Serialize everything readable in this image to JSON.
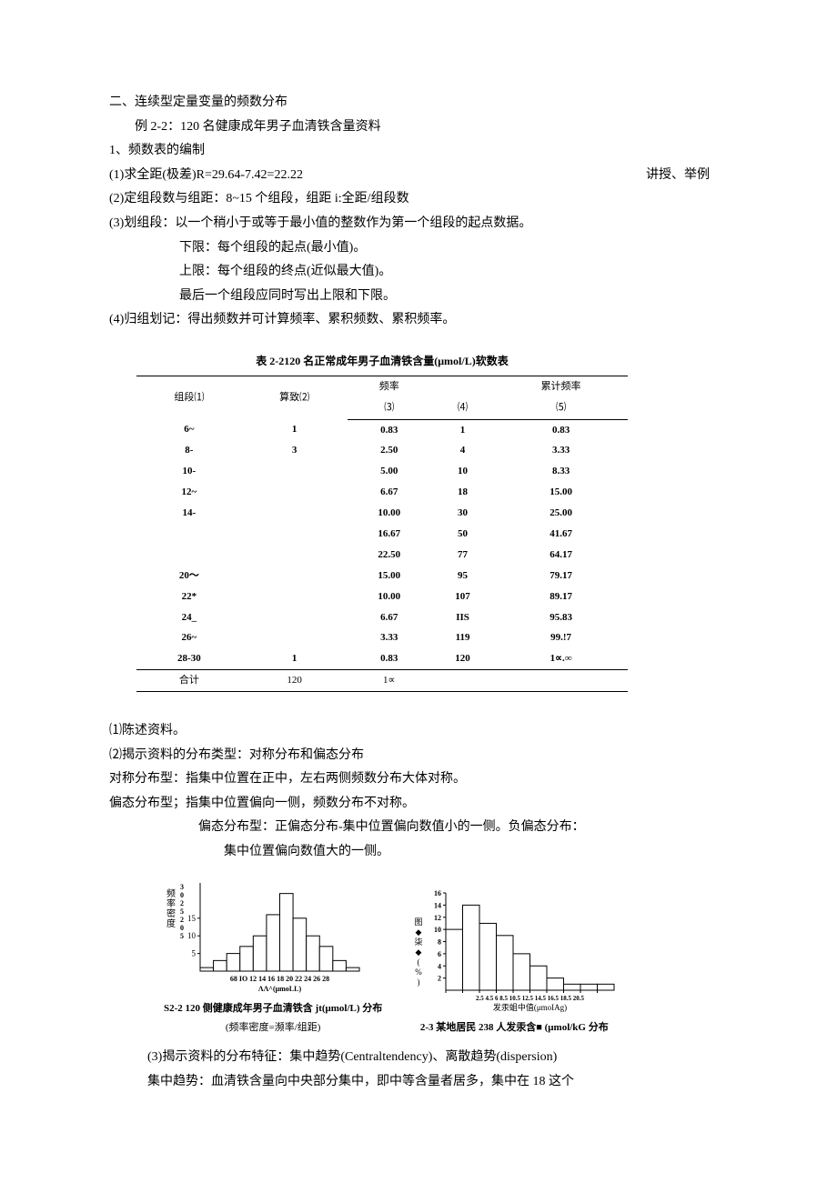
{
  "sidebar": {
    "method": "讲授、举例"
  },
  "sec_title": "二、连续型定量变量的频数分布",
  "example": "例 2-2：120 名健康成年男子血清铁含量资料",
  "steps_title": "1、频数表的编制",
  "s1": "(1)求全距(极差)R=29.64-7.42=22.22",
  "s2": "(2)定组段数与组距：8~15 个组段，组距 i:全距/组段数",
  "s3": "(3)划组段：以一个稍小于或等于最小值的整数作为第一个组段的起点数据。",
  "s3a": "下限：每个组段的起点(最小值)。",
  "s3b": "上限：每个组段的终点(近似最大值)。",
  "s3c": "最后一个组段应同时写出上限和下限。",
  "s4": "(4)归组划记：得出频数并可计算频率、累积频数、累积频率。",
  "table": {
    "title": "表 2-2120 名正常成年男子血清铁含量(μmol/L)软数表",
    "headers": {
      "c1": "组段⑴",
      "c2": "算致⑵",
      "c3t": "频率",
      "c3b": "⑶",
      "c4": "⑷",
      "c5t": "累计频率",
      "c5b": "⑸"
    },
    "rows": [
      {
        "c1": "6~",
        "c2": "1",
        "c3": "0.83",
        "c4": "1",
        "c5": "0.83"
      },
      {
        "c1": "8-",
        "c2": "3",
        "c3": "2.50",
        "c4": "4",
        "c5": "3.33"
      },
      {
        "c1": "10-",
        "c2": "",
        "c3": "5.00",
        "c4": "10",
        "c5": "8.33"
      },
      {
        "c1": "12~",
        "c2": "",
        "c3": "6.67",
        "c4": "18",
        "c5": "15.00"
      },
      {
        "c1": "14-",
        "c2": "",
        "c3": "10.00",
        "c4": "30",
        "c5": "25.00"
      },
      {
        "c1": "",
        "c2": "",
        "c3": "16.67",
        "c4": "50",
        "c5": "41.67"
      },
      {
        "c1": "",
        "c2": "",
        "c3": "22.50",
        "c4": "77",
        "c5": "64.17"
      },
      {
        "c1": "20～",
        "c2": "",
        "c3": "15.00",
        "c4": "95",
        "c5": "79.17"
      },
      {
        "c1": "22*",
        "c2": "",
        "c3": "10.00",
        "c4": "107",
        "c5": "89.17"
      },
      {
        "c1": "24_",
        "c2": "",
        "c3": "6.67",
        "c4": "IIS",
        "c5": "95.83"
      },
      {
        "c1": "26~",
        "c2": "",
        "c3": "3.33",
        "c4": "119",
        "c5": "99.!7"
      },
      {
        "c1": "28-30",
        "c2": "1",
        "c3": "0.83",
        "c4": "120",
        "c5": "1∝.∞"
      }
    ],
    "total": {
      "c1": "合计",
      "c2": "120",
      "c3": "1∝"
    }
  },
  "uses": {
    "u1": "⑴陈述资料。",
    "u2": "⑵揭示资料的分布类型：对称分布和偏态分布",
    "u2a": "对称分布型：指集中位置在正中，左右两侧频数分布大体对称。",
    "u2b": "偏态分布型；指集中位置偏向一侧，频数分布不对称。",
    "u2c": "偏态分布型：正偏态分布-集中位置偏向数值小的一侧。负偏态分布：",
    "u2d": "集中位置偏向数值大的一侧。"
  },
  "chart1": {
    "type": "histogram",
    "y_label_vert": "频率密度",
    "y_nums": "3025205",
    "y_ticks": [
      5,
      10,
      15
    ],
    "x_labels": "68 IO 12 14 16 18 20 22 24 26 28",
    "x_axis_title": "ΛΛ^(μmoLL)",
    "caption": "S2-2 120 侧健康成年男子血清铁含 jt(μmol/L) 分布",
    "sub": "(频率密度=濒率/组距)",
    "bars": [
      1,
      3,
      5,
      7,
      10,
      16,
      22,
      15,
      10,
      7,
      3,
      1
    ],
    "bar_color": "#ffffff",
    "border_color": "#000000",
    "bg": "#ffffff"
  },
  "chart2": {
    "type": "histogram",
    "y_label_vert": "图◆柒◆(%)",
    "y_ticks": [
      2,
      4,
      6,
      8,
      10,
      12,
      14,
      16
    ],
    "x_labels": "2.5 4.5  6 8.5 10.5 12.5 14.5 16.5 18.5 20.5",
    "x_axis_title": "发汞蛆中值(μmoIAg)",
    "caption": "2-3 某地居民 238 人发汞含■ (μmol/kG 分布",
    "bars": [
      10,
      14,
      11,
      9,
      6,
      4,
      2,
      1,
      1,
      1
    ],
    "bar_color": "#ffffff",
    "border_color": "#000000",
    "bg": "#ffffff"
  },
  "final1": "(3)揭示资料的分布特征：集中趋势(Centraltendency)、离散趋势(dispersion)",
  "final2": "集中趋势：血清铁含量向中央部分集中，即中等含量者居多，集中在 18 这个"
}
